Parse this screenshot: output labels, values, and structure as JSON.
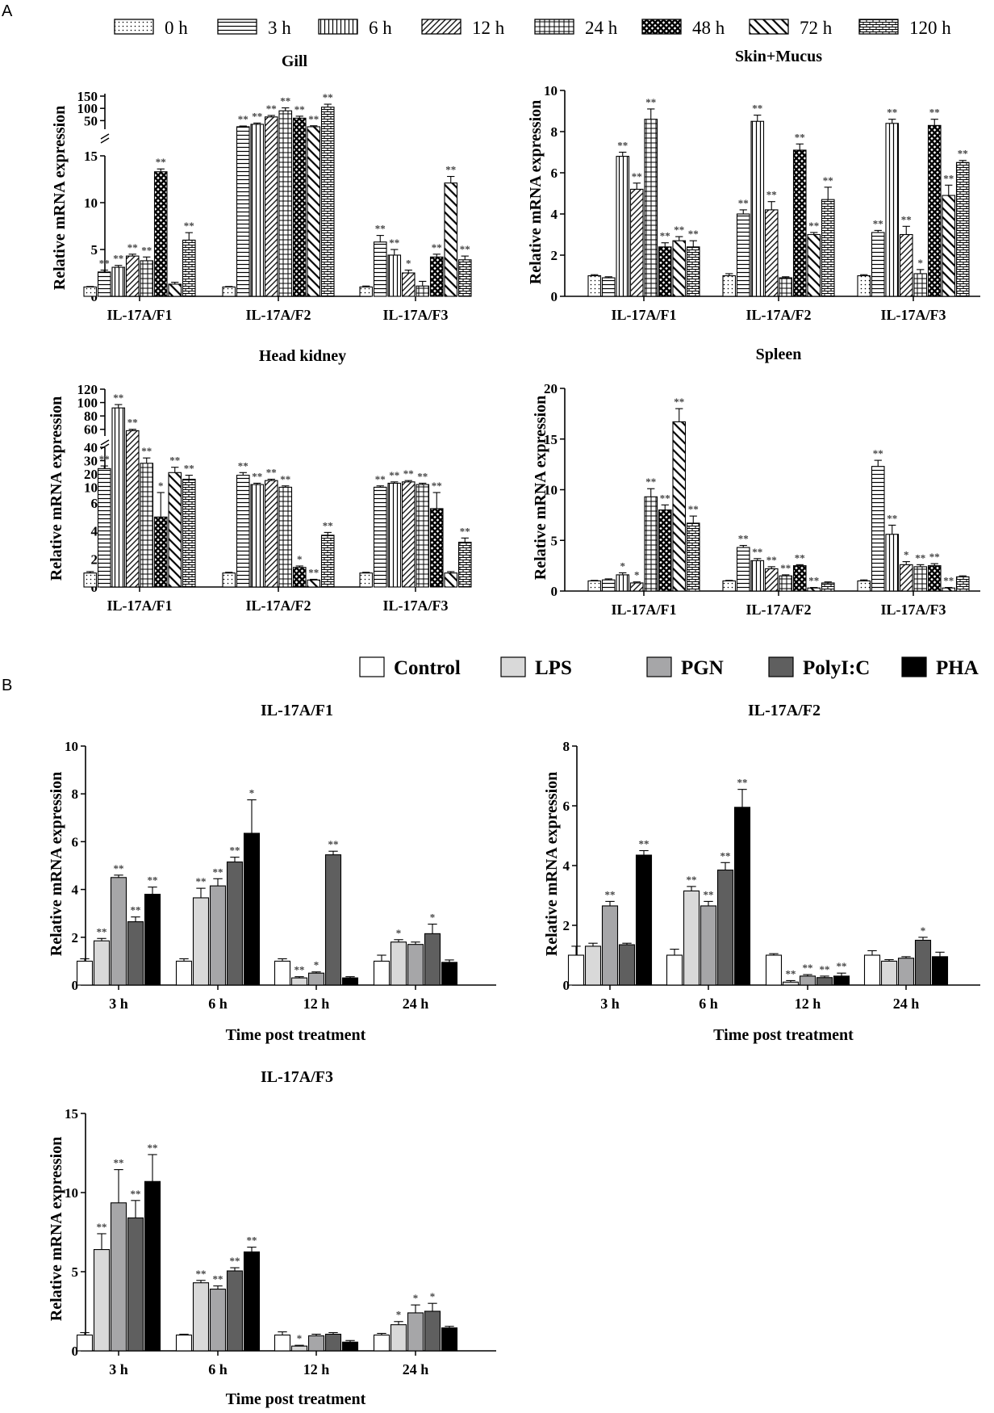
{
  "figure": {
    "panel_labels": [
      "A",
      "B"
    ],
    "ylabel": "Relative mRNA expression",
    "xlabel_b": "Time post treatment",
    "legend_a": [
      {
        "label": "0 h",
        "pattern": "dots"
      },
      {
        "label": "3 h",
        "pattern": "hlines"
      },
      {
        "label": "6 h",
        "pattern": "vlines"
      },
      {
        "label": "12 h",
        "pattern": "diag"
      },
      {
        "label": "24 h",
        "pattern": "grid"
      },
      {
        "label": "48 h",
        "pattern": "cross"
      },
      {
        "label": "72 h",
        "pattern": "bdiag"
      },
      {
        "label": "120 h",
        "pattern": "brick"
      }
    ],
    "legend_b": [
      {
        "label": "Control",
        "color": "#ffffff"
      },
      {
        "label": "LPS",
        "color": "#d9d9d9"
      },
      {
        "label": "PGN",
        "color": "#a6a6a8"
      },
      {
        "label": "PolyI:C",
        "color": "#5f5f5f"
      },
      {
        "label": "PHA",
        "color": "#000000"
      }
    ]
  },
  "chart_data": [
    {
      "id": "gill",
      "type": "bar",
      "title": "Gill",
      "categories": [
        "IL-17A/F1",
        "IL-17A/F2",
        "IL-17A/F3"
      ],
      "ylabel": "Relative mRNA expression",
      "axis": {
        "lower": [
          0,
          15
        ],
        "lower_ticks": [
          0,
          5,
          10,
          15
        ],
        "upper": [
          15,
          160
        ],
        "upper_ticks": [
          50,
          100,
          150
        ]
      },
      "series_names": [
        "0 h",
        "3 h",
        "6 h",
        "12 h",
        "24 h",
        "48 h",
        "72 h",
        "120 h"
      ],
      "values": [
        [
          1,
          2.6,
          3.1,
          4.3,
          3.8,
          13.3,
          1.3,
          6.0
        ],
        [
          1,
          25,
          35,
          65,
          90,
          60,
          25,
          105
        ],
        [
          1,
          5.8,
          4.4,
          2.5,
          1.1,
          4.2,
          12.1,
          3.9
        ]
      ],
      "errors": [
        [
          0.05,
          0.2,
          0.2,
          0.2,
          0.4,
          0.3,
          0.2,
          0.8
        ],
        [
          0.05,
          3,
          5,
          6,
          12,
          8,
          4,
          12
        ],
        [
          0.1,
          0.7,
          0.6,
          0.3,
          0.5,
          0.3,
          0.7,
          0.4
        ]
      ],
      "sig": [
        [
          "",
          "**",
          "**",
          "**",
          "**",
          "**",
          "",
          "**"
        ],
        [
          "",
          "**",
          "**",
          "**",
          "**",
          "**",
          "**",
          "**"
        ],
        [
          "",
          "**",
          "**",
          "*",
          "",
          "**",
          "**",
          "**"
        ]
      ]
    },
    {
      "id": "skin",
      "type": "bar",
      "title": "Skin+Mucus",
      "categories": [
        "IL-17A/F1",
        "IL-17A/F2",
        "IL-17A/F3"
      ],
      "ylabel": "Relative mRNA expression",
      "axis": {
        "lower": [
          0,
          10
        ],
        "lower_ticks": [
          0,
          2,
          4,
          6,
          8,
          10
        ]
      },
      "series_names": [
        "0 h",
        "3 h",
        "6 h",
        "12 h",
        "24 h",
        "48 h",
        "72 h",
        "120 h"
      ],
      "values": [
        [
          1,
          0.9,
          6.8,
          5.2,
          8.6,
          2.4,
          2.7,
          2.4
        ],
        [
          1,
          4.0,
          8.5,
          4.2,
          0.9,
          7.1,
          3.0,
          4.7
        ],
        [
          1,
          3.1,
          8.4,
          3.0,
          1.1,
          8.3,
          4.9,
          6.5
        ]
      ],
      "errors": [
        [
          0.05,
          0.05,
          0.2,
          0.3,
          0.5,
          0.2,
          0.2,
          0.3
        ],
        [
          0.1,
          0.2,
          0.3,
          0.4,
          0.05,
          0.3,
          0.1,
          0.6
        ],
        [
          0.05,
          0.1,
          0.2,
          0.4,
          0.2,
          0.3,
          0.5,
          0.1
        ]
      ],
      "sig": [
        [
          "",
          "",
          "**",
          "**",
          "**",
          "**",
          "**",
          "**"
        ],
        [
          "",
          "**",
          "**",
          "**",
          "",
          "**",
          "**",
          "**"
        ],
        [
          "",
          "**",
          "**",
          "**",
          "*",
          "**",
          "**",
          "**"
        ]
      ]
    },
    {
      "id": "headkidney",
      "type": "bar",
      "title": "Head kidney",
      "categories": [
        "IL-17A/F1",
        "IL-17A/F2",
        "IL-17A/F3"
      ],
      "ylabel": "Relative mRNA expression",
      "axis": {
        "lower": [
          0,
          6
        ],
        "lower_ticks": [
          0,
          2,
          4,
          6
        ],
        "middle": [
          6,
          40
        ],
        "middle_ticks": [
          10,
          20,
          30,
          40
        ],
        "upper": [
          50,
          120
        ],
        "upper_ticks": [
          60,
          80,
          100,
          120
        ]
      },
      "series_names": [
        "0 h",
        "3 h",
        "6 h",
        "12 h",
        "24 h",
        "48 h",
        "72 h",
        "120 h"
      ],
      "values": [
        [
          1,
          24,
          92,
          58,
          28,
          5.0,
          21,
          16
        ],
        [
          1,
          19,
          12,
          15,
          10,
          1.4,
          0.5,
          3.7
        ],
        [
          1,
          10,
          13,
          14,
          12,
          5.6,
          1.0,
          3.2
        ]
      ],
      "errors": [
        [
          0.1,
          2,
          5,
          2,
          4,
          1.0,
          4,
          3
        ],
        [
          0.05,
          2,
          1,
          1,
          1,
          0.1,
          0.05,
          0.2
        ],
        [
          0.05,
          1,
          1,
          1,
          1,
          0.4,
          0.1,
          0.3
        ]
      ],
      "sig": [
        [
          "",
          "**",
          "**",
          "**",
          "**",
          "*",
          "**",
          "**"
        ],
        [
          "",
          "**",
          "**",
          "**",
          "**",
          "*",
          "**",
          "**"
        ],
        [
          "",
          "**",
          "**",
          "**",
          "**",
          "**",
          "",
          "**"
        ]
      ]
    },
    {
      "id": "spleen",
      "type": "bar",
      "title": "Spleen",
      "categories": [
        "IL-17A/F1",
        "IL-17A/F2",
        "IL-17A/F3"
      ],
      "ylabel": "Relative mRNA expression",
      "axis": {
        "lower": [
          0,
          20
        ],
        "lower_ticks": [
          0,
          5,
          10,
          15,
          20
        ]
      },
      "series_names": [
        "0 h",
        "3 h",
        "6 h",
        "12 h",
        "24 h",
        "48 h",
        "72 h",
        "120 h"
      ],
      "values": [
        [
          1,
          1.1,
          1.6,
          0.8,
          9.3,
          8.0,
          16.7,
          6.7
        ],
        [
          1,
          4.3,
          3.0,
          2.2,
          1.5,
          2.5,
          0.3,
          0.8
        ],
        [
          1,
          12.3,
          5.6,
          2.6,
          2.4,
          2.5,
          0.3,
          1.4
        ]
      ],
      "errors": [
        [
          0.05,
          0.1,
          0.2,
          0.1,
          0.8,
          0.5,
          1.3,
          0.7
        ],
        [
          0.05,
          0.2,
          0.2,
          0.2,
          0.1,
          0.1,
          0.05,
          0.1
        ],
        [
          0.1,
          0.6,
          0.9,
          0.3,
          0.2,
          0.2,
          0.05,
          0.1
        ]
      ],
      "sig": [
        [
          "",
          "",
          "*",
          "*",
          "**",
          "**",
          "**",
          "**"
        ],
        [
          "",
          "**",
          "**",
          "**",
          "**",
          "**",
          "**",
          ""
        ],
        [
          "",
          "**",
          "**",
          "*",
          "**",
          "**",
          "**",
          ""
        ]
      ]
    },
    {
      "id": "b1",
      "type": "bar",
      "title": "IL-17A/F1",
      "categories": [
        "3 h",
        "6 h",
        "12 h",
        "24 h"
      ],
      "xlabel": "Time post treatment",
      "ylabel": "Relative mRNA expression",
      "axis": {
        "lower": [
          0,
          10
        ],
        "lower_ticks": [
          0,
          2,
          4,
          6,
          8,
          10
        ]
      },
      "series_names": [
        "Control",
        "LPS",
        "PGN",
        "PolyI:C",
        "PHA"
      ],
      "values": [
        [
          1,
          1.85,
          4.5,
          2.65,
          3.8
        ],
        [
          1,
          3.65,
          4.15,
          5.15,
          6.35
        ],
        [
          1,
          0.3,
          0.5,
          5.45,
          0.3
        ],
        [
          1,
          1.8,
          1.7,
          2.15,
          0.95
        ]
      ],
      "errors": [
        [
          0.1,
          0.1,
          0.1,
          0.2,
          0.3
        ],
        [
          0.1,
          0.4,
          0.3,
          0.2,
          1.4
        ],
        [
          0.1,
          0.05,
          0.05,
          0.15,
          0.05
        ],
        [
          0.25,
          0.1,
          0.1,
          0.4,
          0.1
        ]
      ],
      "sig": [
        [
          "",
          "**",
          "**",
          "**",
          "**"
        ],
        [
          "",
          "**",
          "**",
          "**",
          "*"
        ],
        [
          "",
          "**",
          "*",
          "**",
          ""
        ],
        [
          "",
          "*",
          "",
          "*",
          ""
        ]
      ]
    },
    {
      "id": "b2",
      "type": "bar",
      "title": "IL-17A/F2",
      "categories": [
        "3 h",
        "6 h",
        "12 h",
        "24 h"
      ],
      "xlabel": "Time post treatment",
      "ylabel": "Relative mRNA expression",
      "axis": {
        "lower": [
          0,
          8
        ],
        "lower_ticks": [
          0,
          2,
          4,
          6,
          8
        ]
      },
      "series_names": [
        "Control",
        "LPS",
        "PGN",
        "PolyI:C",
        "PHA"
      ],
      "values": [
        [
          1,
          1.3,
          2.65,
          1.35,
          4.35
        ],
        [
          1,
          3.15,
          2.65,
          3.85,
          5.95
        ],
        [
          1,
          0.1,
          0.3,
          0.25,
          0.3
        ],
        [
          1,
          0.8,
          0.9,
          1.5,
          0.95
        ]
      ],
      "errors": [
        [
          0.3,
          0.1,
          0.15,
          0.05,
          0.15
        ],
        [
          0.2,
          0.15,
          0.15,
          0.25,
          0.6
        ],
        [
          0.05,
          0.05,
          0.05,
          0.05,
          0.1
        ],
        [
          0.15,
          0.05,
          0.05,
          0.1,
          0.15
        ]
      ],
      "sig": [
        [
          "",
          "",
          "**",
          "",
          "**"
        ],
        [
          "",
          "**",
          "**",
          "**",
          "**"
        ],
        [
          "",
          "**",
          "**",
          "**",
          "**"
        ],
        [
          "",
          "",
          "",
          "*",
          ""
        ]
      ]
    },
    {
      "id": "b3",
      "type": "bar",
      "title": "IL-17A/F3",
      "categories": [
        "3 h",
        "6 h",
        "12 h",
        "24 h"
      ],
      "xlabel": "Time post treatment",
      "ylabel": "Relative mRNA expression",
      "axis": {
        "lower": [
          0,
          15
        ],
        "lower_ticks": [
          0,
          5,
          10,
          15
        ]
      },
      "series_names": [
        "Control",
        "LPS",
        "PGN",
        "PolyI:C",
        "PHA"
      ],
      "values": [
        [
          1,
          6.4,
          9.35,
          8.4,
          10.7
        ],
        [
          1,
          4.3,
          3.9,
          5.05,
          6.25
        ],
        [
          1,
          0.3,
          0.95,
          1.05,
          0.55
        ],
        [
          1,
          1.65,
          2.4,
          2.5,
          1.45
        ]
      ],
      "errors": [
        [
          0.15,
          1.0,
          2.1,
          1.1,
          1.7
        ],
        [
          0.05,
          0.15,
          0.2,
          0.2,
          0.3
        ],
        [
          0.2,
          0.05,
          0.1,
          0.1,
          0.1
        ],
        [
          0.1,
          0.2,
          0.5,
          0.5,
          0.1
        ]
      ],
      "sig": [
        [
          "",
          "**",
          "**",
          "**",
          "**"
        ],
        [
          "",
          "**",
          "**",
          "**",
          "**"
        ],
        [
          "",
          "*",
          "",
          "",
          ""
        ],
        [
          "",
          "*",
          "*",
          "*",
          ""
        ]
      ]
    }
  ]
}
